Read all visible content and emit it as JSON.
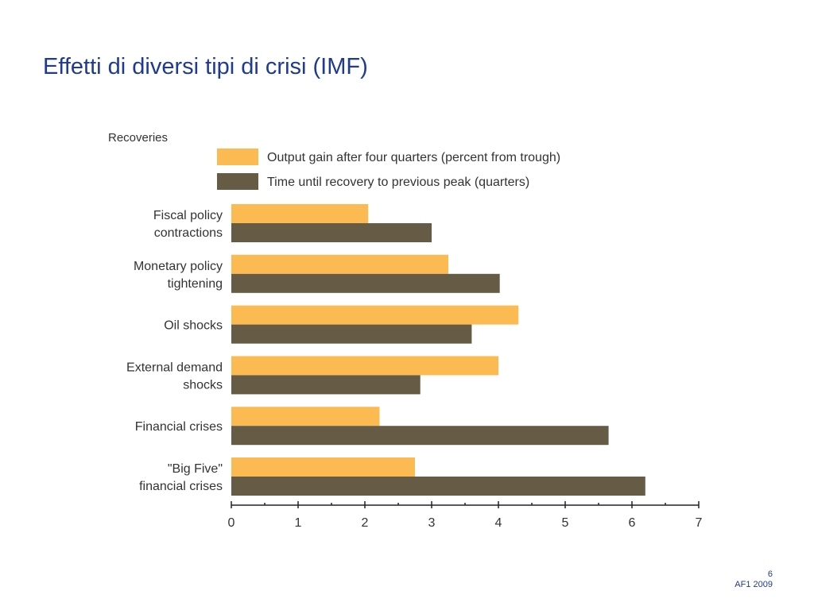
{
  "slide": {
    "title": "Effetti di diversi tipi di crisi (IMF)",
    "page_number": "6",
    "footer_note": "AF1  2009"
  },
  "colors": {
    "title": "#1F3A93",
    "output_gain": "#FBBA52",
    "time_to_recovery": "#665B45",
    "text": "#333333"
  },
  "chart_data": {
    "type": "bar",
    "orientation": "horizontal",
    "title": "Recoveries",
    "xlabel": "",
    "ylabel": "",
    "xlim": [
      0,
      7
    ],
    "x_ticks": [
      "0",
      "1",
      "2",
      "3",
      "4",
      "5",
      "6",
      "7"
    ],
    "grid": false,
    "legend_placement": "top",
    "categories": [
      [
        "Fiscal policy",
        "contractions"
      ],
      [
        "Monetary policy",
        "tightening"
      ],
      [
        "Oil shocks"
      ],
      [
        "External demand",
        "shocks"
      ],
      [
        "Financial crises"
      ],
      [
        "\"Big Five\"",
        "financial crises"
      ]
    ],
    "series": [
      {
        "name": "Output gain after four quarters (percent from trough)",
        "color": "#FBBA52",
        "values": [
          2.05,
          3.25,
          4.3,
          4.0,
          2.22,
          2.75
        ]
      },
      {
        "name": "Time until recovery to previous peak (quarters)",
        "color": "#665B45",
        "values": [
          3.0,
          4.02,
          3.6,
          2.83,
          5.65,
          6.2
        ]
      }
    ]
  }
}
